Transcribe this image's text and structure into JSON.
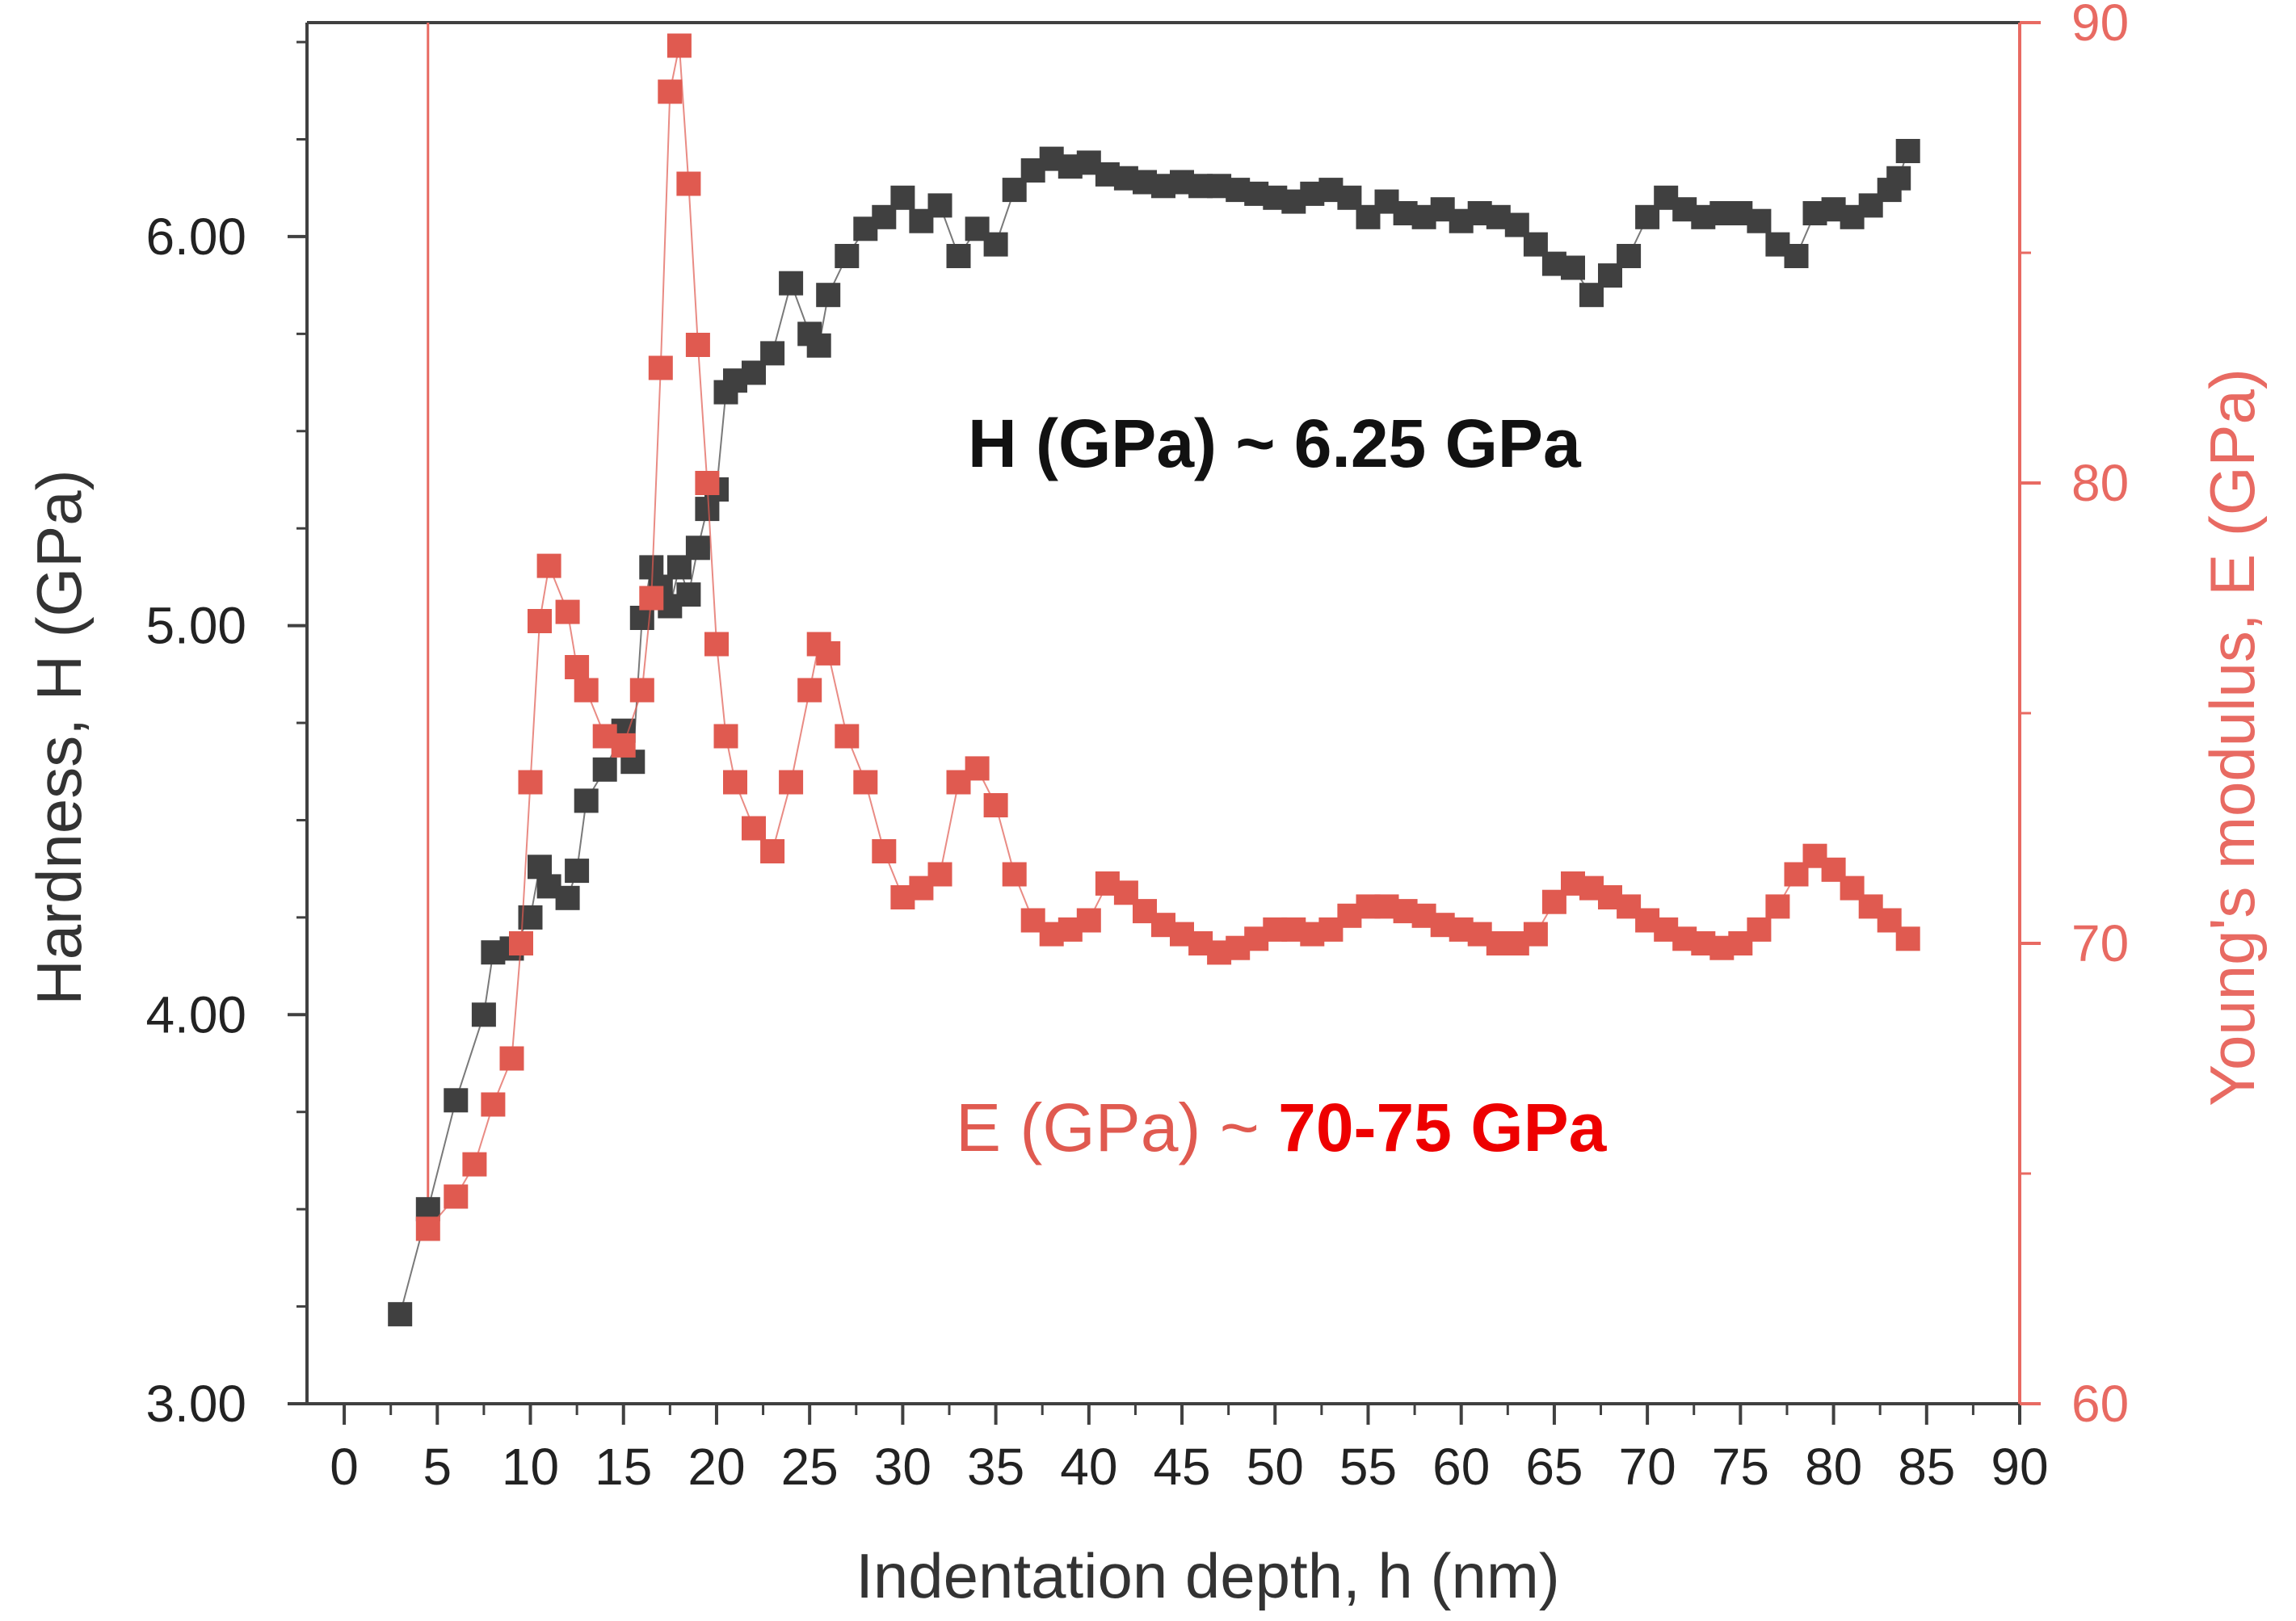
{
  "chart_data": {
    "type": "scatter",
    "xlabel": "Indentation depth, h (nm)",
    "ylabel_left": "Hardness, H (GPa)",
    "ylabel_right": "Young's modulus, E (GPa)",
    "xlim": [
      -2,
      90
    ],
    "ylim_left": [
      3.0,
      6.55
    ],
    "ylim_right": [
      60,
      90
    ],
    "x_ticks": [
      "0",
      "5",
      "10",
      "15",
      "20",
      "25",
      "30",
      "35",
      "40",
      "45",
      "50",
      "55",
      "60",
      "65",
      "70",
      "75",
      "80",
      "85",
      "90"
    ],
    "y_left_ticks": [
      "3.00",
      "4.00",
      "5.00",
      "6.00"
    ],
    "y_right_ticks": [
      "60",
      "70",
      "80",
      "90"
    ],
    "colors": {
      "hardness": "#404040",
      "modulus": "#e05a50",
      "axis_right": "#e86a62",
      "highlight": "#ee0000"
    },
    "annotations": {
      "hardness_prefix": "H (GPa) ~ ",
      "hardness_value": "6.25 GPa",
      "modulus_prefix": "E (GPa) ~ ",
      "modulus_value": "70-75 GPa"
    },
    "series": [
      {
        "key": "hardness",
        "axis": "left",
        "x": [
          3,
          4.5,
          6,
          7.5,
          8,
          9,
          10,
          10.5,
          11,
          12,
          12.5,
          13,
          14,
          15,
          15.5,
          16,
          16.5,
          17,
          17.5,
          18,
          18.5,
          19,
          19.5,
          20,
          20.5,
          21,
          22,
          23,
          24,
          25,
          25.5,
          26,
          27,
          28,
          29,
          30,
          31,
          32,
          33,
          34,
          35,
          36,
          37,
          38,
          39,
          40,
          41,
          42,
          43,
          44,
          45,
          46,
          47,
          48,
          49,
          50,
          51,
          52,
          53,
          54,
          55,
          56,
          57,
          58,
          59,
          60,
          61,
          62,
          63,
          64,
          65,
          66,
          67,
          68,
          69,
          70,
          71,
          72,
          73,
          74,
          75,
          76,
          77,
          78,
          79,
          80,
          81,
          82,
          83,
          83.5,
          84
        ],
        "y": [
          3.23,
          3.5,
          3.78,
          4.0,
          4.16,
          4.17,
          4.25,
          4.38,
          4.33,
          4.3,
          4.37,
          4.55,
          4.63,
          4.73,
          4.65,
          5.02,
          5.15,
          5.1,
          5.05,
          5.15,
          5.08,
          5.2,
          5.3,
          5.35,
          5.6,
          5.63,
          5.65,
          5.7,
          5.88,
          5.75,
          5.72,
          5.85,
          5.95,
          6.02,
          6.05,
          6.1,
          6.04,
          6.08,
          5.95,
          6.02,
          5.98,
          6.12,
          6.17,
          6.2,
          6.18,
          6.19,
          6.16,
          6.15,
          6.14,
          6.13,
          6.14,
          6.13,
          6.13,
          6.12,
          6.11,
          6.1,
          6.09,
          6.11,
          6.12,
          6.1,
          6.05,
          6.09,
          6.06,
          6.05,
          6.07,
          6.04,
          6.06,
          6.05,
          6.03,
          5.98,
          5.93,
          5.92,
          5.85,
          5.9,
          5.95,
          6.05,
          6.1,
          6.07,
          6.05,
          6.06,
          6.06,
          6.04,
          5.98,
          5.95,
          6.06,
          6.07,
          6.05,
          6.08,
          6.12,
          6.15,
          6.22
        ]
      },
      {
        "key": "modulus",
        "axis": "right",
        "x": [
          4.5,
          6,
          7,
          8,
          9,
          9.5,
          10,
          10.5,
          11,
          12,
          12.5,
          13,
          14,
          15,
          16,
          16.5,
          17,
          17.5,
          18,
          18.5,
          19,
          19.5,
          20,
          20.5,
          21,
          22,
          23,
          24,
          25,
          25.5,
          26,
          27,
          28,
          29,
          30,
          31,
          32,
          33,
          34,
          35,
          36,
          37,
          38,
          39,
          40,
          41,
          42,
          43,
          44,
          45,
          46,
          47,
          48,
          49,
          50,
          51,
          52,
          53,
          54,
          55,
          56,
          57,
          58,
          59,
          60,
          61,
          62,
          63,
          64,
          65,
          66,
          67,
          68,
          69,
          70,
          71,
          72,
          73,
          74,
          75,
          76,
          77,
          78,
          79,
          80,
          81,
          82,
          83,
          84
        ],
        "y": [
          63.8,
          64.5,
          65.2,
          66.5,
          67.5,
          70,
          73.5,
          77,
          78.2,
          77.2,
          76,
          75.5,
          74.5,
          74.3,
          75.5,
          77.5,
          82.5,
          88.5,
          89.5,
          86.5,
          83,
          80,
          76.5,
          74.5,
          73.5,
          72.5,
          72.0,
          73.5,
          75.5,
          76.5,
          76.3,
          74.5,
          73.5,
          72.0,
          71.0,
          71.2,
          71.5,
          73.5,
          73.8,
          73.0,
          71.5,
          70.5,
          70.2,
          70.3,
          70.5,
          71.3,
          71.1,
          70.7,
          70.4,
          70.2,
          70.0,
          69.8,
          69.9,
          70.1,
          70.3,
          70.3,
          70.2,
          70.3,
          70.6,
          70.8,
          70.8,
          70.7,
          70.6,
          70.4,
          70.3,
          70.2,
          70.0,
          70.0,
          70.2,
          70.9,
          71.3,
          71.2,
          71.0,
          70.8,
          70.5,
          70.3,
          70.1,
          70.0,
          69.9,
          70.0,
          70.3,
          70.8,
          71.5,
          71.9,
          71.6,
          71.2,
          70.8,
          70.5,
          70.1
        ]
      }
    ]
  }
}
